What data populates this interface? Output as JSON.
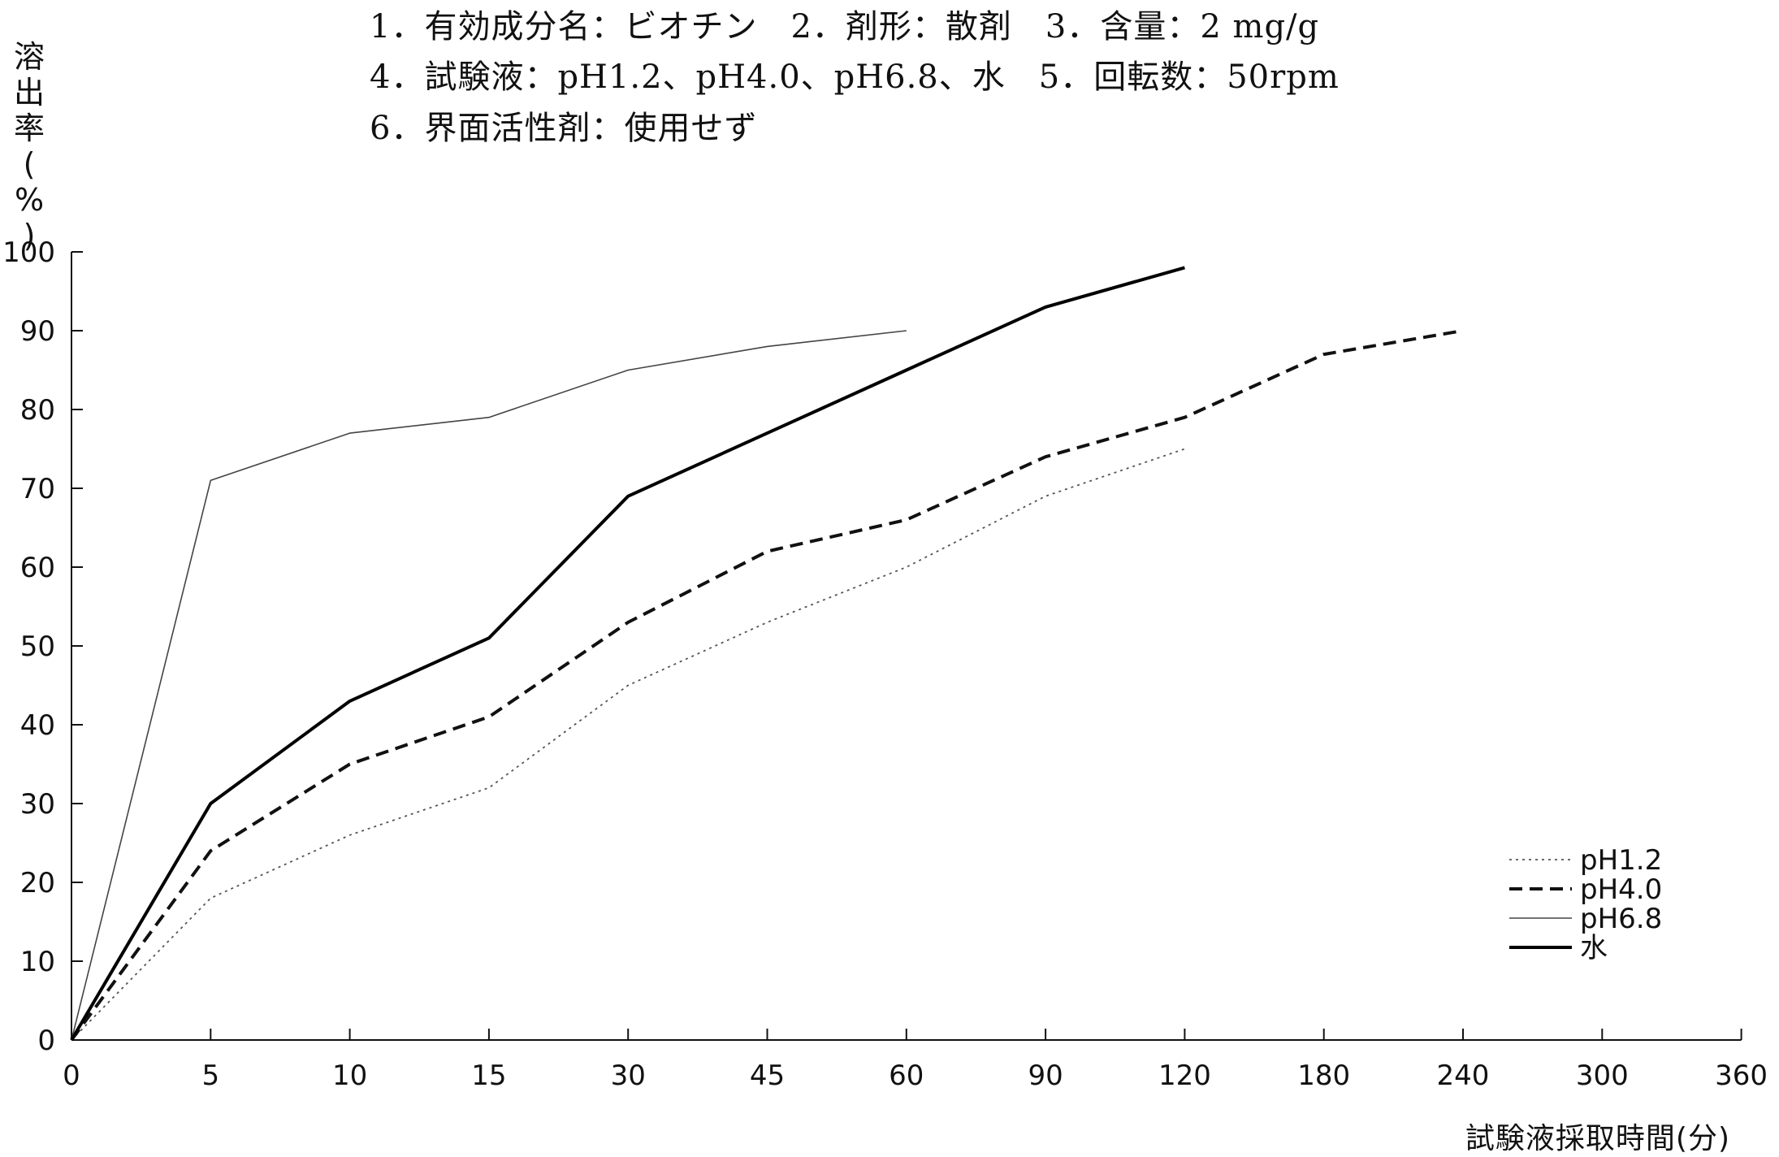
{
  "info": {
    "line1": "1．有効成分名：ビオチン　2．剤形：散剤　3．含量：2 mg/g",
    "line2": "4．試験液：pH1.2、pH4.0、pH6.8、水　5．回転数：50rpm",
    "line3": "6．界面活性剤：使用せず"
  },
  "chart_data": {
    "type": "line",
    "title": "",
    "ylabel": "溶出率(%)",
    "xlabel": "試験液採取時間(分)",
    "categories": [
      "0",
      "5",
      "10",
      "15",
      "30",
      "45",
      "60",
      "90",
      "120",
      "180",
      "240",
      "300",
      "360"
    ],
    "yticks": [
      "0",
      "10",
      "20",
      "30",
      "40",
      "50",
      "60",
      "70",
      "80",
      "90",
      "100"
    ],
    "ylim": [
      0,
      100
    ],
    "x_scale": "categorical (non-uniform time points, equal spacing)",
    "grid": false,
    "legend_position": "bottom-right",
    "series": [
      {
        "name": "pH1.2",
        "style": "dotted",
        "color": "#555555",
        "values": [
          0,
          18,
          26,
          32,
          45,
          53,
          60,
          69,
          75,
          null,
          null,
          null,
          null
        ]
      },
      {
        "name": "pH4.0",
        "style": "dashed",
        "color": "#111111",
        "values": [
          0,
          24,
          35,
          41,
          53,
          62,
          66,
          74,
          79,
          87,
          90,
          null,
          null
        ]
      },
      {
        "name": "pH6.8",
        "style": "thin",
        "color": "#444444",
        "values": [
          0,
          71,
          77,
          79,
          85,
          88,
          90,
          null,
          null,
          null,
          null,
          null,
          null
        ]
      },
      {
        "name": "水",
        "style": "thick",
        "color": "#000000",
        "values": [
          0,
          30,
          43,
          51,
          69,
          77,
          85,
          93,
          98,
          null,
          null,
          null,
          null
        ]
      }
    ]
  }
}
